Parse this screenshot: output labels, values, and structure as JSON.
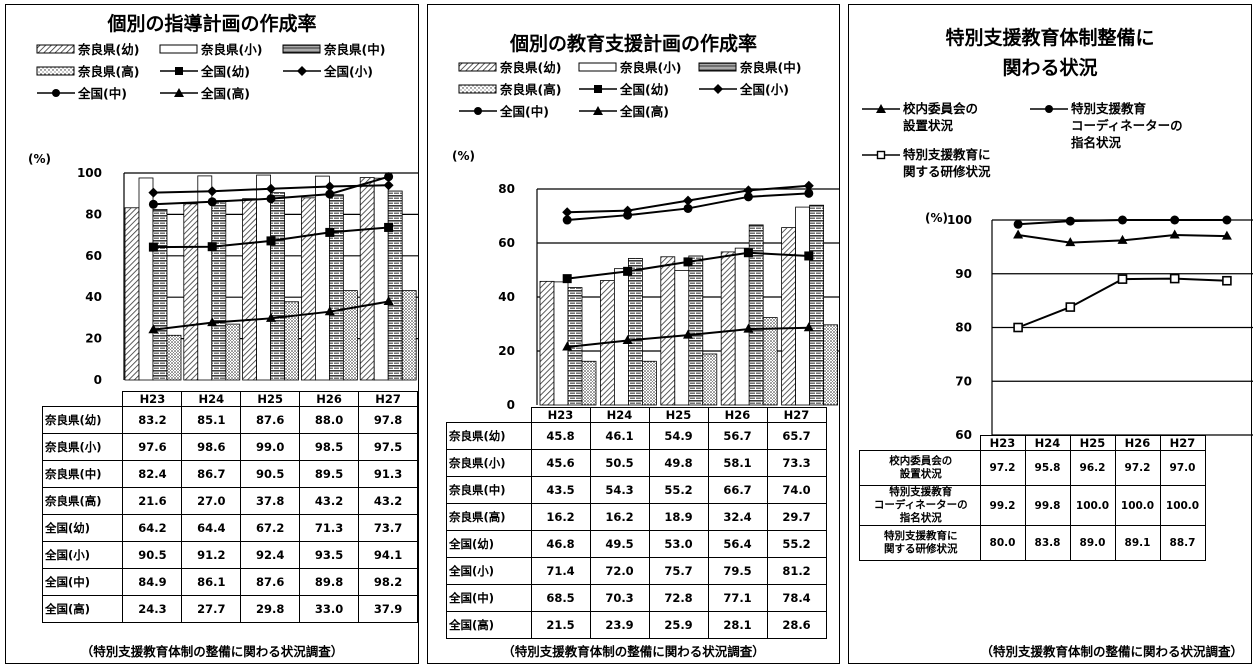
{
  "chart_data": [
    {
      "type": "bar",
      "title": "個別の指導計画の作成率",
      "unit": "(%)",
      "categories": [
        "H23",
        "H24",
        "H25",
        "H26",
        "H27"
      ],
      "ylim": [
        0,
        100
      ],
      "yticks": [
        0,
        20,
        40,
        60,
        80,
        100
      ],
      "bar_series": [
        {
          "name": "奈良県(幼)",
          "pattern": "diag",
          "values": [
            83.2,
            85.1,
            87.6,
            88.0,
            97.8
          ]
        },
        {
          "name": "奈良県(小)",
          "pattern": "white",
          "values": [
            97.6,
            98.6,
            99.0,
            98.5,
            97.5
          ]
        },
        {
          "name": "奈良県(中)",
          "pattern": "brick",
          "values": [
            82.4,
            86.7,
            90.5,
            89.5,
            91.3
          ]
        },
        {
          "name": "奈良県(高)",
          "pattern": "dots",
          "values": [
            21.6,
            27.0,
            37.8,
            43.2,
            43.2
          ]
        }
      ],
      "line_series": [
        {
          "name": "全国(幼)",
          "marker": "square",
          "values": [
            64.2,
            64.4,
            67.2,
            71.3,
            73.7
          ]
        },
        {
          "name": "全国(小)",
          "marker": "diamond",
          "values": [
            90.5,
            91.2,
            92.4,
            93.5,
            94.1
          ]
        },
        {
          "name": "全国(中)",
          "marker": "circle",
          "values": [
            84.9,
            86.1,
            87.6,
            89.8,
            98.2
          ]
        },
        {
          "name": "全国(高)",
          "marker": "triangle",
          "values": [
            24.3,
            27.7,
            29.8,
            33.0,
            37.9
          ]
        }
      ],
      "table_rows": [
        {
          "label": "奈良県(幼)",
          "cells": [
            "83.2",
            "85.1",
            "87.6",
            "88.0",
            "97.8"
          ]
        },
        {
          "label": "奈良県(小)",
          "cells": [
            "97.6",
            "98.6",
            "99.0",
            "98.5",
            "97.5"
          ]
        },
        {
          "label": "奈良県(中)",
          "cells": [
            "82.4",
            "86.7",
            "90.5",
            "89.5",
            "91.3"
          ]
        },
        {
          "label": "奈良県(高)",
          "cells": [
            "21.6",
            "27.0",
            "37.8",
            "43.2",
            "43.2"
          ]
        },
        {
          "label": "全国(幼)",
          "cells": [
            "64.2",
            "64.4",
            "67.2",
            "71.3",
            "73.7"
          ]
        },
        {
          "label": "全国(小)",
          "cells": [
            "90.5",
            "91.2",
            "92.4",
            "93.5",
            "94.1"
          ]
        },
        {
          "label": "全国(中)",
          "cells": [
            "84.9",
            "86.1",
            "87.6",
            "89.8",
            "98.2"
          ]
        },
        {
          "label": "全国(高)",
          "cells": [
            "24.3",
            "27.7",
            "29.8",
            "33.0",
            "37.9"
          ]
        }
      ],
      "source": "（特別支援教育体制の整備に関わる状況調査）"
    },
    {
      "type": "bar",
      "title": "個別の教育支援計画の作成率",
      "unit": "(%)",
      "categories": [
        "H23",
        "H24",
        "H25",
        "H26",
        "H27"
      ],
      "ylim": [
        0,
        80
      ],
      "yticks": [
        0,
        20,
        40,
        60,
        80
      ],
      "bar_series": [
        {
          "name": "奈良県(幼)",
          "pattern": "diag",
          "values": [
            45.8,
            46.1,
            54.9,
            56.7,
            65.7
          ]
        },
        {
          "name": "奈良県(小)",
          "pattern": "white",
          "values": [
            45.6,
            50.5,
            49.8,
            58.1,
            73.3
          ]
        },
        {
          "name": "奈良県(中)",
          "pattern": "brick",
          "values": [
            43.5,
            54.3,
            55.2,
            66.7,
            74.0
          ]
        },
        {
          "name": "奈良県(高)",
          "pattern": "dots",
          "values": [
            16.2,
            16.2,
            18.9,
            32.4,
            29.7
          ]
        }
      ],
      "line_series": [
        {
          "name": "全国(幼)",
          "marker": "square",
          "values": [
            46.8,
            49.5,
            53.0,
            56.4,
            55.2
          ]
        },
        {
          "name": "全国(小)",
          "marker": "diamond",
          "values": [
            71.4,
            72.0,
            75.7,
            79.5,
            81.2
          ]
        },
        {
          "name": "全国(中)",
          "marker": "circle",
          "values": [
            68.5,
            70.3,
            72.8,
            77.1,
            78.4
          ]
        },
        {
          "name": "全国(高)",
          "marker": "triangle",
          "values": [
            21.5,
            23.9,
            25.9,
            28.1,
            28.6
          ]
        }
      ],
      "table_rows": [
        {
          "label": "奈良県(幼)",
          "cells": [
            "45.8",
            "46.1",
            "54.9",
            "56.7",
            "65.7"
          ]
        },
        {
          "label": "奈良県(小)",
          "cells": [
            "45.6",
            "50.5",
            "49.8",
            "58.1",
            "73.3"
          ]
        },
        {
          "label": "奈良県(中)",
          "cells": [
            "43.5",
            "54.3",
            "55.2",
            "66.7",
            "74.0"
          ]
        },
        {
          "label": "奈良県(高)",
          "cells": [
            "16.2",
            "16.2",
            "18.9",
            "32.4",
            "29.7"
          ]
        },
        {
          "label": "全国(幼)",
          "cells": [
            "46.8",
            "49.5",
            "53.0",
            "56.4",
            "55.2"
          ]
        },
        {
          "label": "全国(小)",
          "cells": [
            "71.4",
            "72.0",
            "75.7",
            "79.5",
            "81.2"
          ]
        },
        {
          "label": "全国(中)",
          "cells": [
            "68.5",
            "70.3",
            "72.8",
            "77.1",
            "78.4"
          ]
        },
        {
          "label": "全国(高)",
          "cells": [
            "21.5",
            "23.9",
            "25.9",
            "28.1",
            "28.6"
          ]
        }
      ],
      "source": "（特別支援教育体制の整備に関わる状況調査）"
    },
    {
      "type": "line",
      "title_lines": [
        "特別支援教育体制整備に",
        "関わる状況"
      ],
      "unit": "(%)",
      "categories": [
        "H23",
        "H24",
        "H25",
        "H26",
        "H27"
      ],
      "ylim": [
        60,
        100
      ],
      "yticks": [
        60,
        70,
        80,
        90,
        100
      ],
      "line_series": [
        {
          "name_lines": [
            "校内委員会の",
            "設置状況"
          ],
          "marker": "triangle",
          "values": [
            97.2,
            95.8,
            96.2,
            97.2,
            97.0
          ]
        },
        {
          "name_lines": [
            "特別支援教育",
            "コーディネーターの",
            "指名状況"
          ],
          "marker": "circle",
          "values": [
            99.2,
            99.8,
            100.0,
            100.0,
            100.0
          ]
        },
        {
          "name_lines": [
            "特別支援教育に",
            "関する研修状況"
          ],
          "marker": "square-open",
          "values": [
            80.0,
            83.8,
            89.0,
            89.1,
            88.7
          ]
        }
      ],
      "table_rows": [
        {
          "label_lines": [
            "校内委員会の",
            "設置状況"
          ],
          "cells": [
            "97.2",
            "95.8",
            "96.2",
            "97.2",
            "97.0"
          ]
        },
        {
          "label_lines": [
            "特別支援教育",
            "コーディネーターの",
            "指名状況"
          ],
          "cells": [
            "99.2",
            "99.8",
            "100.0",
            "100.0",
            "100.0"
          ]
        },
        {
          "label_lines": [
            "特別支援教育に",
            "関する研修状況"
          ],
          "cells": [
            "80.0",
            "83.8",
            "89.0",
            "89.1",
            "88.7"
          ]
        }
      ],
      "source": "（特別支援教育体制の整備に関わる状況調査）"
    }
  ]
}
